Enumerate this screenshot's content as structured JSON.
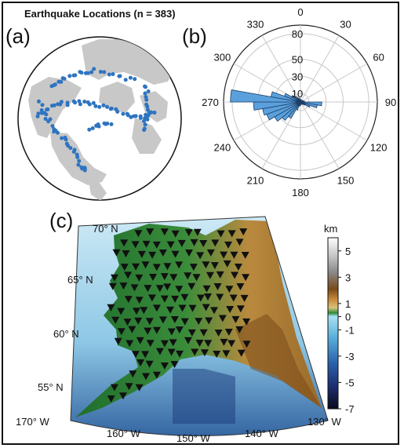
{
  "figure": {
    "title": "Earthquake Locations (n = 383)",
    "panel_labels": [
      "(a)",
      "(b)",
      "(c)"
    ]
  },
  "colors": {
    "marker_blue": "#2e74c0",
    "rose_fill": "#5aa0dc",
    "land_gray": "#c8c8c8",
    "station_marker": "#111111"
  },
  "chart_data": [
    {
      "panel": "(a)",
      "type": "scatter",
      "title": "Earthquake Locations (n = 383)",
      "projection": "orthographic globe",
      "marker": "dot",
      "color": "#2e74c0",
      "n": 383
    },
    {
      "panel": "(b)",
      "type": "bar",
      "subtype": "polar rose histogram",
      "angle_ticks": [
        "0",
        "30",
        "60",
        "90",
        "120",
        "150",
        "180",
        "210",
        "240",
        "270",
        "300",
        "330"
      ],
      "radial_ticks": [
        "10",
        "30",
        "50",
        "80"
      ],
      "rlim": [
        0,
        90
      ],
      "grid": true,
      "bins_deg": [
        0,
        10,
        20,
        30,
        40,
        50,
        60,
        70,
        80,
        90,
        100,
        110,
        120,
        130,
        140,
        150,
        160,
        170,
        180,
        190,
        200,
        210,
        220,
        230,
        240,
        250,
        260,
        270,
        280,
        290,
        300,
        310,
        320,
        330,
        340,
        350
      ],
      "counts": [
        3,
        3,
        2,
        2,
        2,
        3,
        3,
        4,
        5,
        25,
        20,
        12,
        6,
        4,
        3,
        2,
        3,
        3,
        4,
        5,
        10,
        22,
        28,
        35,
        42,
        45,
        55,
        82,
        35,
        20,
        12,
        8,
        6,
        5,
        4,
        3
      ]
    },
    {
      "panel": "(c)",
      "type": "scatter",
      "subtype": "station map over topography",
      "marker": "inverted triangle",
      "x_ticks": [
        "170° W",
        "160° W",
        "150° W",
        "140° W",
        "130° W"
      ],
      "y_ticks": [
        "55° N",
        "60° N",
        "65° N",
        "70° N"
      ],
      "colorbar": {
        "label": "km",
        "ticks": [
          "5",
          "3",
          "1",
          "0",
          "-1",
          "-3",
          "-5",
          "-7"
        ],
        "range": [
          -7,
          6
        ]
      }
    }
  ]
}
